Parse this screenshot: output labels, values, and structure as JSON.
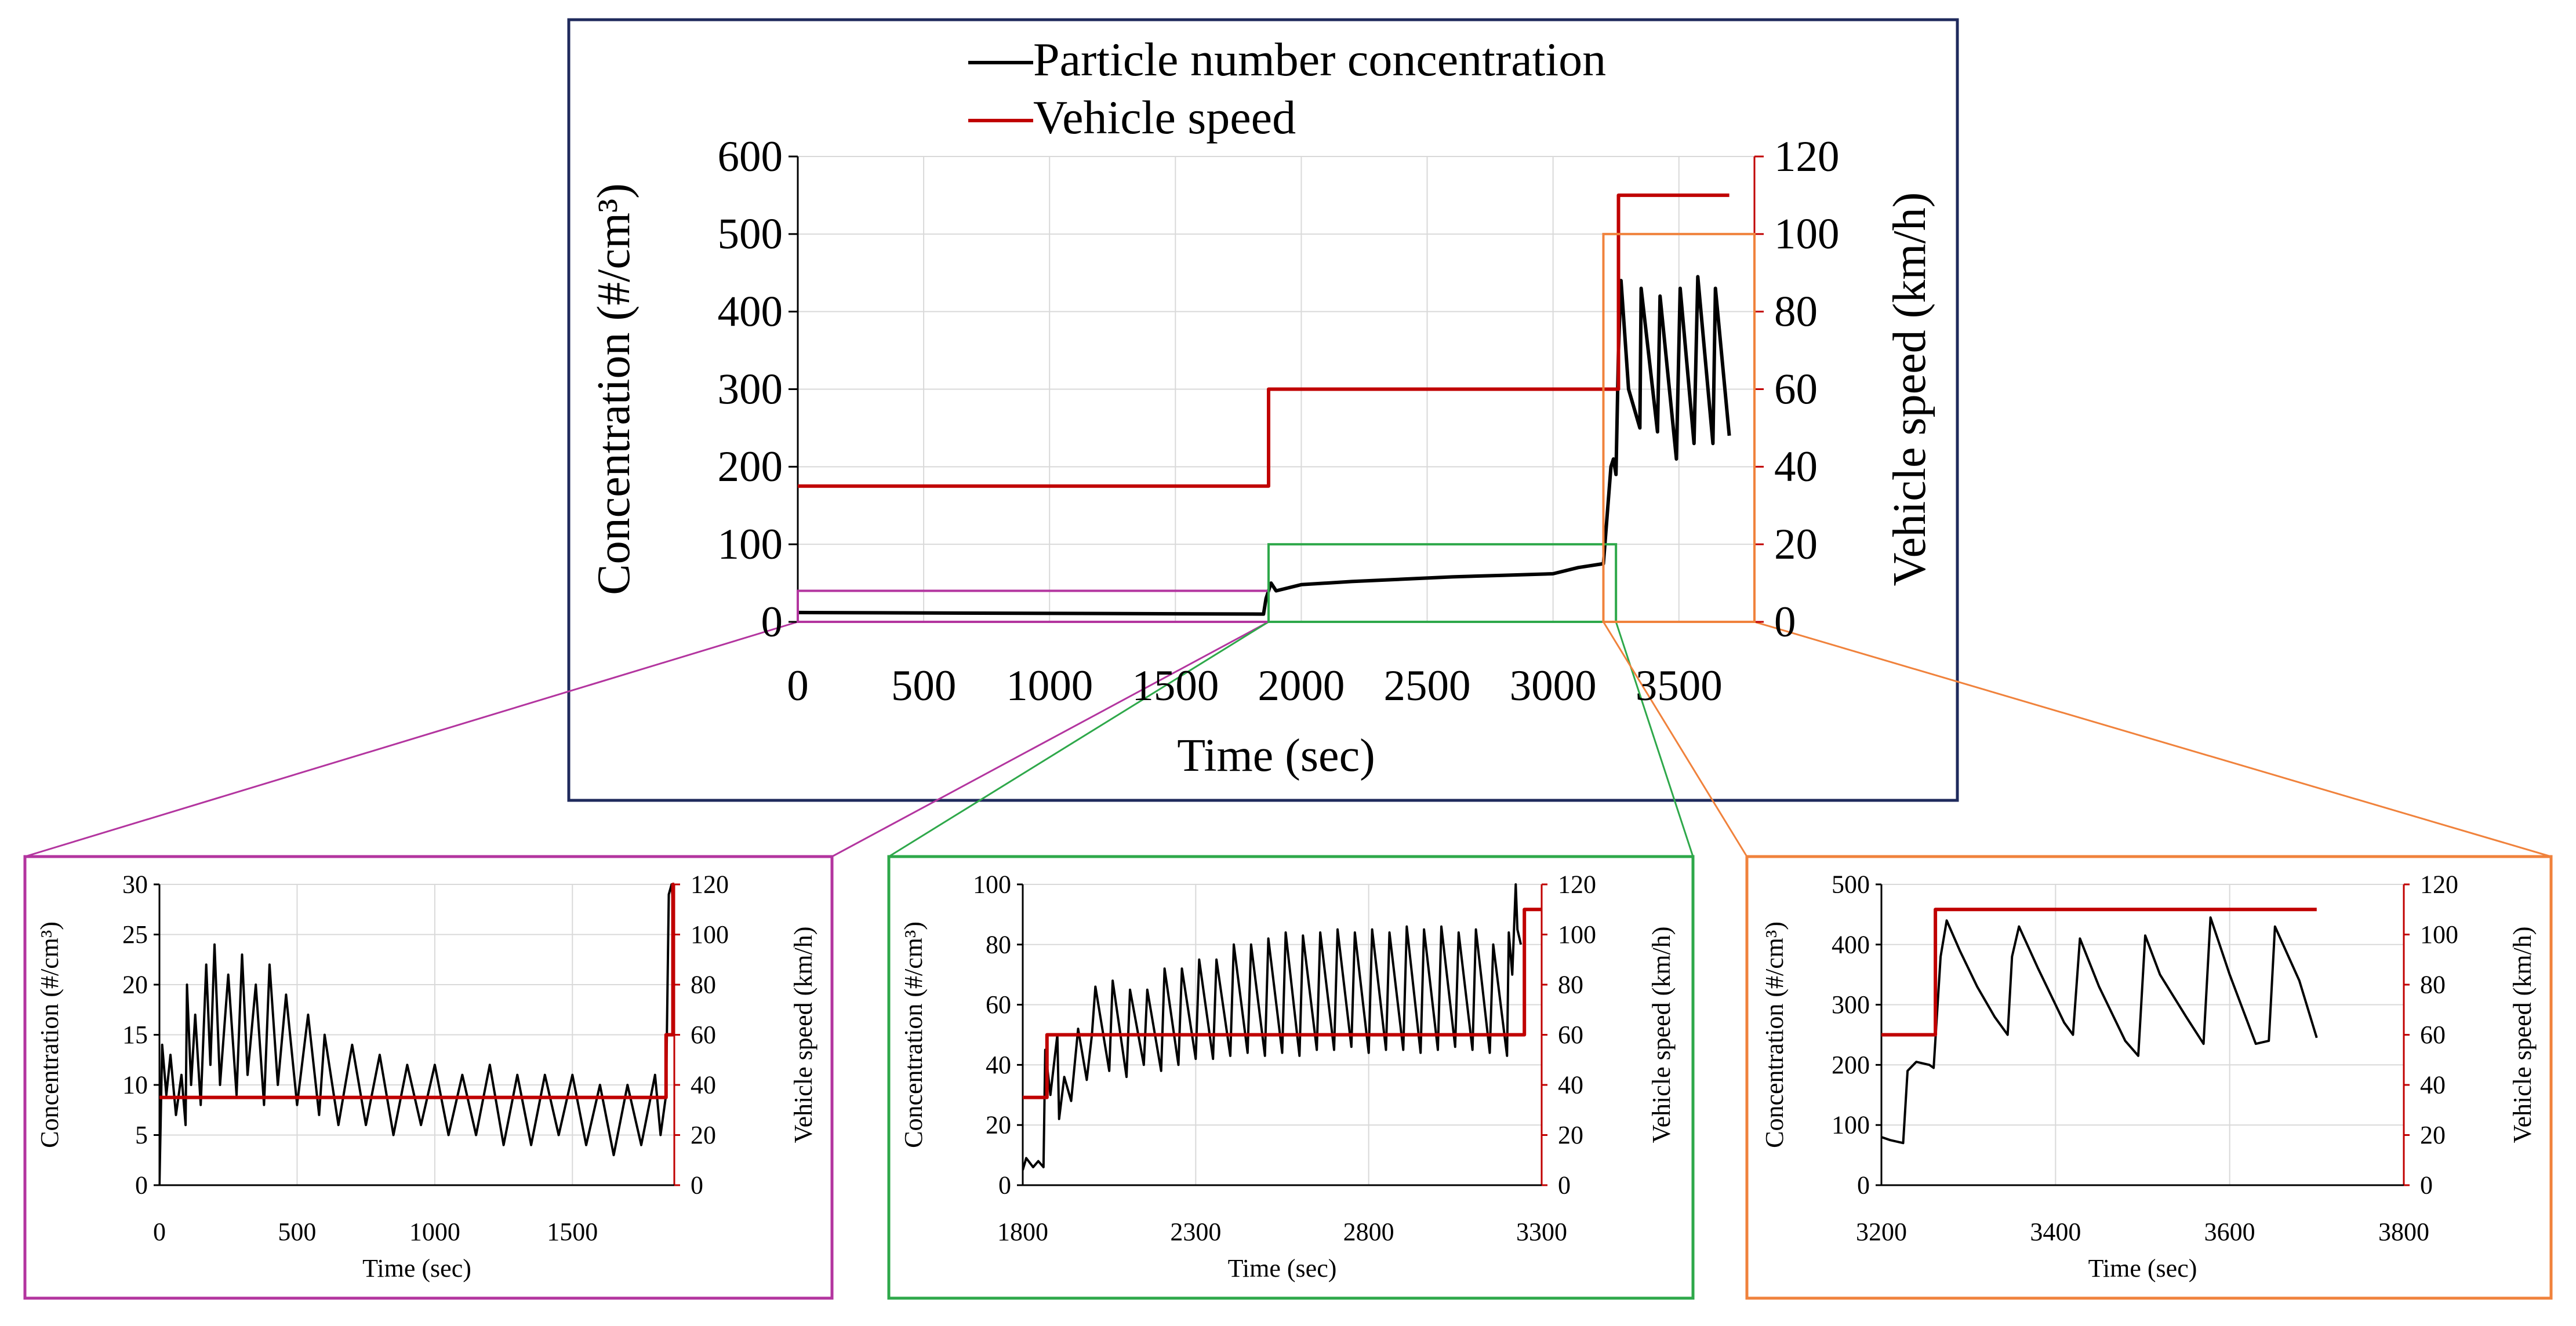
{
  "colors": {
    "concentration": "#000000",
    "speed": "#c00000",
    "main_frame": "#1f2a5c",
    "zoom_magenta": "#b3359f",
    "zoom_green": "#2ea84a",
    "zoom_orange": "#f0823c",
    "grid": "#d9d9d9"
  },
  "chart_data": [
    {
      "id": "main",
      "type": "line",
      "title": "",
      "legend": {
        "placement": "top-center",
        "entries": [
          "Particle number concentration",
          "Vehicle speed"
        ]
      },
      "xlabel": "Time (sec)",
      "ylabel": "Concentration (#/cm³)",
      "y2label": "Vehicle speed (km/h)",
      "xlim": [
        0,
        3800
      ],
      "ylim": [
        0,
        600
      ],
      "y2lim": [
        0,
        120
      ],
      "xticks": [
        0,
        500,
        1000,
        1500,
        2000,
        2500,
        3000,
        3500
      ],
      "xtick_labels": [
        "0",
        "500",
        "1000",
        "1500",
        "2000",
        "2500",
        "3000",
        "3500"
      ],
      "yticks": [
        0,
        100,
        200,
        300,
        400,
        500,
        600
      ],
      "ytick_labels": [
        "0",
        "100",
        "200",
        "300",
        "400",
        "500",
        "600"
      ],
      "y2ticks": [
        0,
        20,
        40,
        60,
        80,
        100,
        120
      ],
      "y2tick_labels": [
        "0",
        "20",
        "40",
        "60",
        "80",
        "100",
        "120"
      ],
      "grid": true,
      "series": [
        {
          "name": "Particle number concentration",
          "axis": "left",
          "x": [
            0,
            1850,
            1860,
            1880,
            1900,
            2000,
            2200,
            2400,
            2600,
            2800,
            3000,
            3100,
            3200,
            3230,
            3240,
            3250,
            3260,
            3270,
            3300,
            3345,
            3350,
            3415,
            3425,
            3490,
            3505,
            3560,
            3575,
            3635,
            3645,
            3700
          ],
          "y": [
            12,
            10,
            30,
            50,
            40,
            48,
            52,
            55,
            58,
            60,
            62,
            70,
            75,
            200,
            210,
            190,
            350,
            440,
            300,
            250,
            430,
            245,
            420,
            210,
            430,
            230,
            445,
            230,
            430,
            240
          ]
        },
        {
          "name": "Vehicle speed",
          "axis": "right",
          "x": [
            0,
            1870,
            1870,
            3260,
            3260,
            3700
          ],
          "y": [
            35,
            35,
            60,
            60,
            110,
            110
          ]
        }
      ],
      "zoom_boxes": [
        {
          "name": "magenta",
          "x": [
            0,
            1870
          ],
          "y": [
            0,
            40
          ]
        },
        {
          "name": "green",
          "x": [
            1870,
            3250
          ],
          "y": [
            0,
            100
          ]
        },
        {
          "name": "orange",
          "x": [
            3200,
            3800
          ],
          "y": [
            0,
            500
          ]
        }
      ]
    },
    {
      "id": "zoom1",
      "type": "line",
      "xlabel": "Time (sec)",
      "ylabel": "Concentration (#/cm³)",
      "y2label": "Vehicle speed (km/h)",
      "xlim": [
        0,
        1870
      ],
      "ylim": [
        0,
        30
      ],
      "y2lim": [
        0,
        120
      ],
      "xticks": [
        0,
        500,
        1000,
        1500
      ],
      "xtick_labels": [
        "0",
        "500",
        "1000",
        "1500"
      ],
      "yticks": [
        0,
        5,
        10,
        15,
        20,
        25,
        30
      ],
      "ytick_labels": [
        "0",
        "5",
        "10",
        "15",
        "20",
        "25",
        "30"
      ],
      "y2ticks": [
        0,
        20,
        40,
        60,
        80,
        100,
        120
      ],
      "y2tick_labels": [
        "0",
        "20",
        "40",
        "60",
        "80",
        "100",
        "120"
      ],
      "grid": true,
      "series": [
        {
          "name": "Particle number concentration",
          "axis": "left",
          "x": [
            0,
            10,
            25,
            40,
            60,
            80,
            95,
            100,
            115,
            130,
            150,
            170,
            185,
            200,
            220,
            250,
            280,
            300,
            320,
            350,
            380,
            400,
            430,
            460,
            500,
            540,
            580,
            600,
            650,
            700,
            750,
            800,
            850,
            900,
            950,
            1000,
            1050,
            1100,
            1150,
            1200,
            1250,
            1300,
            1350,
            1400,
            1450,
            1500,
            1550,
            1600,
            1650,
            1700,
            1750,
            1800,
            1820,
            1840,
            1850,
            1860,
            1870
          ],
          "y": [
            0,
            14,
            9,
            13,
            7,
            11,
            6,
            20,
            10,
            17,
            8,
            22,
            12,
            24,
            10,
            21,
            9,
            23,
            11,
            20,
            8,
            22,
            10,
            19,
            8,
            17,
            7,
            15,
            6,
            14,
            6,
            13,
            5,
            12,
            6,
            12,
            5,
            11,
            5,
            12,
            4,
            11,
            4,
            11,
            5,
            11,
            4,
            10,
            3,
            10,
            4,
            11,
            5,
            9,
            29,
            30,
            26
          ]
        },
        {
          "name": "Vehicle speed",
          "axis": "right",
          "x": [
            0,
            1840,
            1840,
            1865,
            1865,
            1870
          ],
          "y": [
            35,
            35,
            60,
            60,
            120,
            120
          ]
        }
      ]
    },
    {
      "id": "zoom2",
      "type": "line",
      "xlabel": "Time (sec)",
      "ylabel": "Concentration (#/cm³)",
      "y2label": "Vehicle speed (km/h)",
      "xlim": [
        1800,
        3300
      ],
      "ylim": [
        0,
        100
      ],
      "y2lim": [
        0,
        120
      ],
      "xticks": [
        1800,
        2300,
        2800,
        3300
      ],
      "xtick_labels": [
        "1800",
        "2300",
        "2800",
        "3300"
      ],
      "yticks": [
        0,
        20,
        40,
        60,
        80,
        100
      ],
      "ytick_labels": [
        "0",
        "20",
        "40",
        "60",
        "80",
        "100"
      ],
      "y2ticks": [
        0,
        20,
        40,
        60,
        80,
        100,
        120
      ],
      "y2tick_labels": [
        "0",
        "20",
        "40",
        "60",
        "80",
        "100",
        "120"
      ],
      "grid": true,
      "series": [
        {
          "name": "Particle number concentration",
          "axis": "left",
          "x": [
            1800,
            1810,
            1830,
            1845,
            1860,
            1865,
            1880,
            1900,
            1905,
            1920,
            1940,
            1960,
            1985,
            2000,
            2010,
            2050,
            2060,
            2100,
            2110,
            2150,
            2160,
            2200,
            2210,
            2250,
            2260,
            2300,
            2310,
            2350,
            2360,
            2400,
            2410,
            2450,
            2460,
            2500,
            2510,
            2550,
            2560,
            2600,
            2610,
            2650,
            2660,
            2700,
            2710,
            2750,
            2760,
            2800,
            2810,
            2850,
            2860,
            2900,
            2910,
            2950,
            2960,
            3000,
            3010,
            3050,
            3060,
            3100,
            3110,
            3150,
            3160,
            3200,
            3205,
            3215,
            3225,
            3230,
            3240
          ],
          "y": [
            5,
            9,
            6,
            8,
            6,
            45,
            30,
            50,
            22,
            36,
            28,
            52,
            35,
            50,
            66,
            38,
            68,
            36,
            65,
            40,
            65,
            38,
            72,
            40,
            72,
            42,
            75,
            42,
            75,
            43,
            80,
            44,
            80,
            43,
            82,
            44,
            84,
            43,
            83,
            45,
            84,
            45,
            85,
            46,
            84,
            44,
            85,
            45,
            84,
            45,
            86,
            44,
            85,
            45,
            86,
            46,
            84,
            45,
            85,
            44,
            80,
            43,
            84,
            70,
            100,
            85,
            80
          ]
        },
        {
          "name": "Vehicle speed",
          "axis": "right",
          "x": [
            1800,
            1870,
            1870,
            3250,
            3250,
            3300
          ],
          "y": [
            35,
            35,
            60,
            60,
            110,
            110
          ]
        }
      ]
    },
    {
      "id": "zoom3",
      "type": "line",
      "xlabel": "Time (sec)",
      "ylabel": "Concentration (#/cm³)",
      "y2label": "Vehicle speed (km/h)",
      "xlim": [
        3200,
        3800
      ],
      "ylim": [
        0,
        500
      ],
      "y2lim": [
        0,
        120
      ],
      "xticks": [
        3200,
        3400,
        3600,
        3800
      ],
      "xtick_labels": [
        "3200",
        "3400",
        "3600",
        "3800"
      ],
      "yticks": [
        0,
        100,
        200,
        300,
        400,
        500
      ],
      "ytick_labels": [
        "0",
        "100",
        "200",
        "300",
        "400",
        "500"
      ],
      "y2ticks": [
        0,
        20,
        40,
        60,
        80,
        100,
        120
      ],
      "y2tick_labels": [
        "0",
        "20",
        "40",
        "60",
        "80",
        "100",
        "120"
      ],
      "grid": true,
      "series": [
        {
          "name": "Particle number concentration",
          "axis": "left",
          "x": [
            3200,
            3210,
            3225,
            3230,
            3240,
            3255,
            3260,
            3268,
            3275,
            3290,
            3310,
            3330,
            3345,
            3350,
            3358,
            3380,
            3410,
            3420,
            3428,
            3450,
            3480,
            3495,
            3503,
            3520,
            3550,
            3570,
            3578,
            3600,
            3630,
            3645,
            3652,
            3680,
            3700
          ],
          "y": [
            80,
            75,
            70,
            190,
            205,
            200,
            195,
            380,
            440,
            390,
            330,
            280,
            250,
            380,
            430,
            360,
            270,
            250,
            410,
            330,
            240,
            215,
            415,
            350,
            280,
            235,
            445,
            350,
            235,
            240,
            430,
            340,
            245
          ]
        },
        {
          "name": "Vehicle speed",
          "axis": "right",
          "x": [
            3200,
            3262,
            3262,
            3700
          ],
          "y": [
            60,
            60,
            110,
            110
          ]
        }
      ]
    }
  ]
}
